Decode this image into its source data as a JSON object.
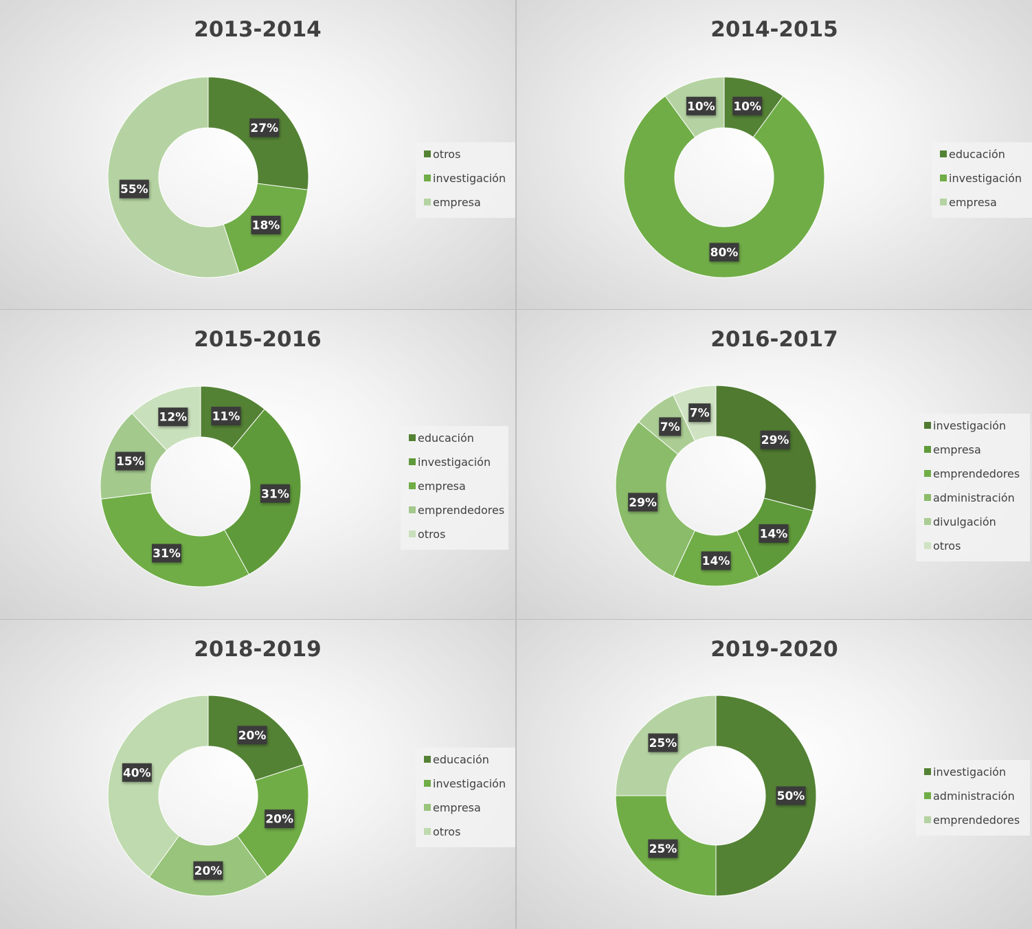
{
  "chart_data": [
    {
      "type": "pie",
      "title": "2013-2014",
      "categories": [
        "otros",
        "investigación",
        "empresa"
      ],
      "values": [
        27,
        18,
        55
      ],
      "labels": [
        "27%",
        "18%",
        "55%"
      ],
      "colors": [
        "#548235",
        "#70ad47",
        "#b5d3a2"
      ],
      "legend_position": "right"
    },
    {
      "type": "pie",
      "title": "2014-2015",
      "categories": [
        "educación",
        "investigación",
        "empresa"
      ],
      "values": [
        10,
        80,
        10
      ],
      "labels": [
        "10%",
        "80%",
        "10%"
      ],
      "colors": [
        "#548235",
        "#70ad47",
        "#b5d3a2"
      ],
      "legend_position": "right"
    },
    {
      "type": "pie",
      "title": "2015-2016",
      "categories": [
        "educación",
        "investigación",
        "empresa",
        "emprendedores",
        "otros"
      ],
      "values": [
        11,
        31,
        31,
        15,
        12
      ],
      "labels": [
        "11%",
        "31%",
        "31%",
        "15%",
        "12%"
      ],
      "colors": [
        "#548235",
        "#5f9a3a",
        "#70ad47",
        "#a3c98d",
        "#c9e0bc"
      ],
      "legend_position": "right"
    },
    {
      "type": "pie",
      "title": "2016-2017",
      "categories": [
        "investigación",
        "empresa",
        "emprendedores",
        "administración",
        "divulgación",
        "otros"
      ],
      "values": [
        29,
        14,
        14,
        29,
        7,
        7
      ],
      "labels": [
        "29%",
        "14%",
        "14%",
        "29%",
        "7%",
        "7%"
      ],
      "colors": [
        "#4f7a30",
        "#5f9a3a",
        "#70ad47",
        "#8bbc6a",
        "#abcd94",
        "#cfe3c2"
      ],
      "legend_position": "right"
    },
    {
      "type": "pie",
      "title": "2018-2019",
      "categories": [
        "educación",
        "investigación",
        "empresa",
        "otros"
      ],
      "values": [
        20,
        20,
        20,
        40
      ],
      "labels": [
        "20%",
        "20%",
        "20%",
        "40%"
      ],
      "colors": [
        "#548235",
        "#70ad47",
        "#98c47c",
        "#bfdaae"
      ],
      "legend_position": "right"
    },
    {
      "type": "pie",
      "title": "2019-2020",
      "categories": [
        "investigación",
        "administración",
        "emprendedores"
      ],
      "values": [
        50,
        25,
        25
      ],
      "labels": [
        "50%",
        "25%",
        "25%"
      ],
      "colors": [
        "#548235",
        "#70ad47",
        "#b5d3a2"
      ],
      "legend_position": "right"
    }
  ]
}
